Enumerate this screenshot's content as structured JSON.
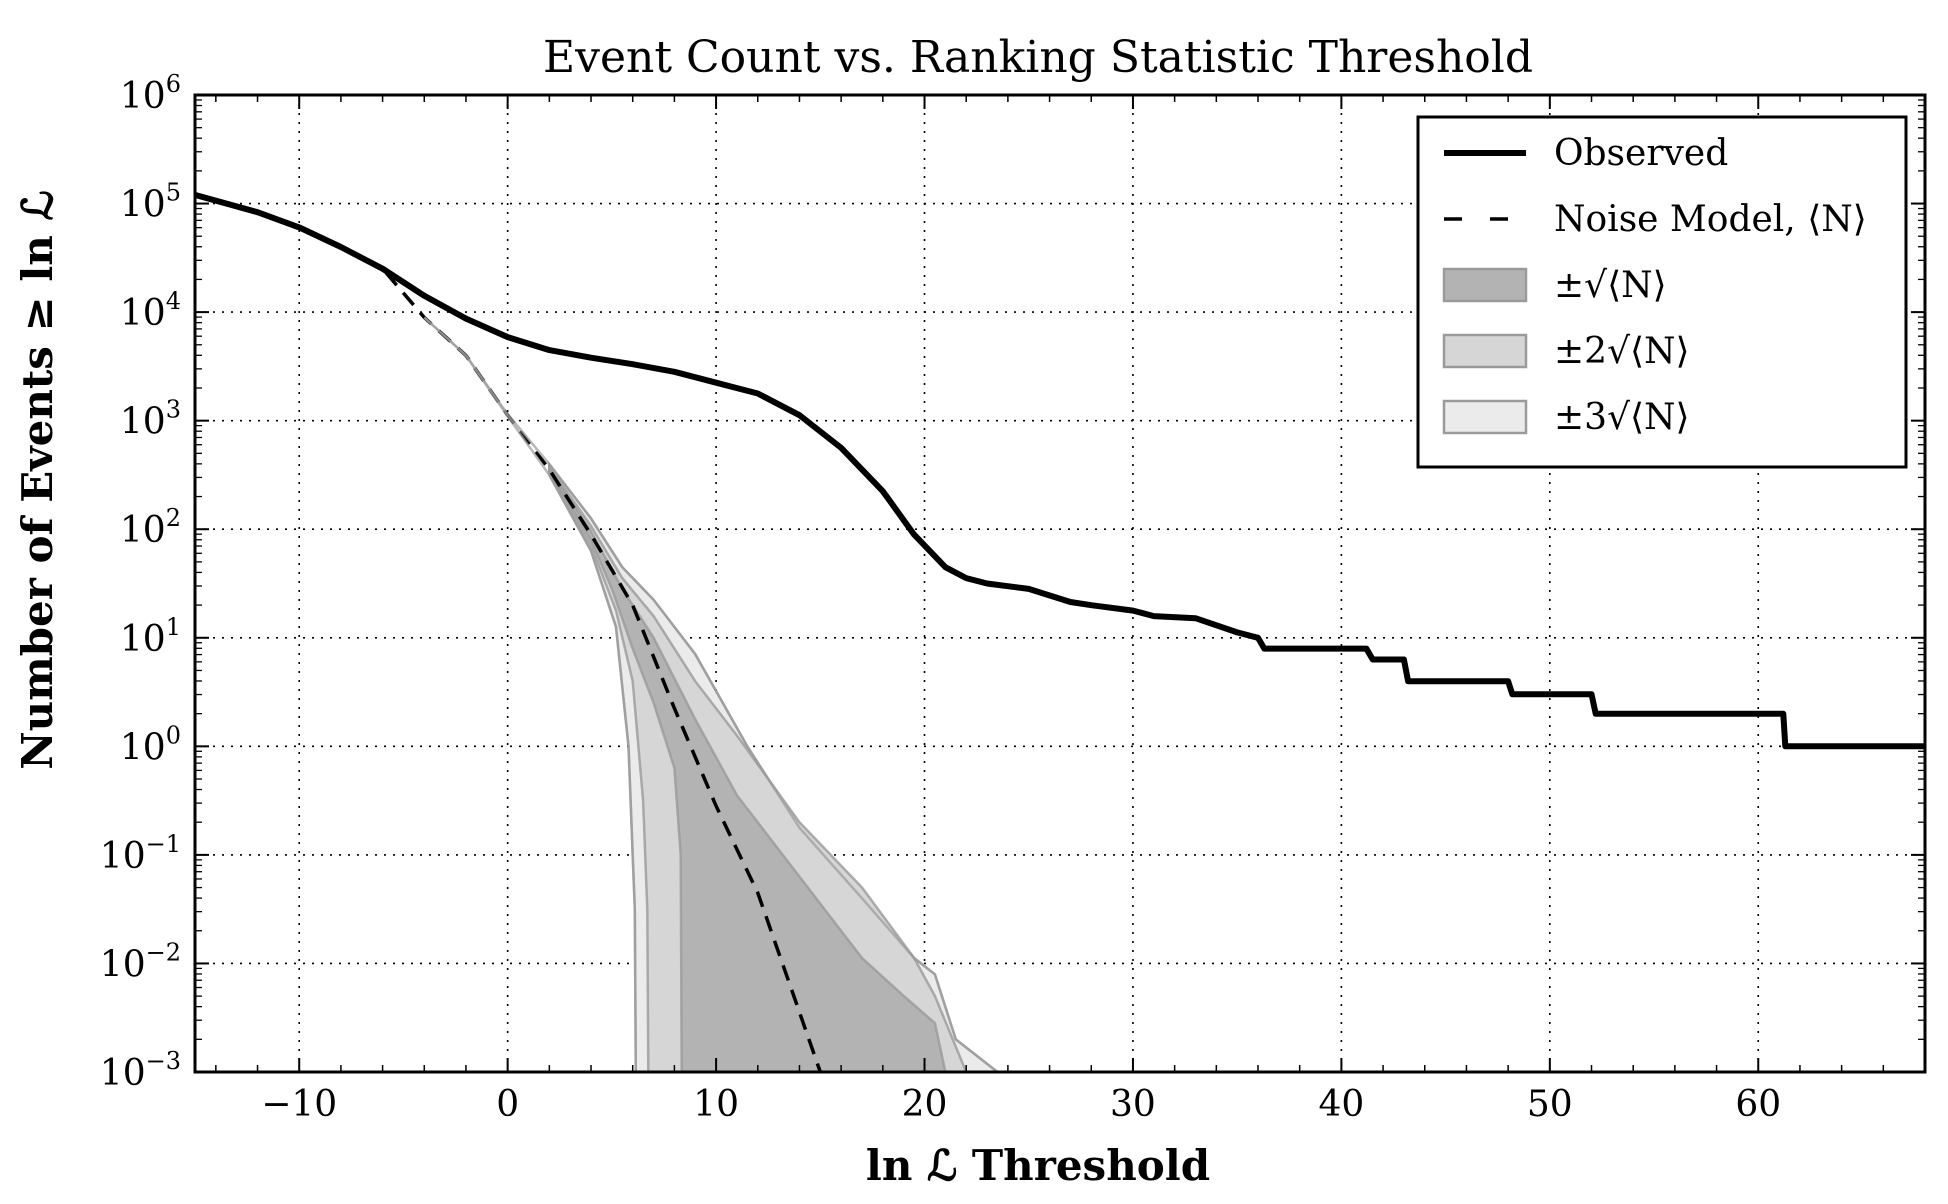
{
  "chart_data": {
    "type": "line",
    "title": "Event Count vs. Ranking Statistic Threshold",
    "xlabel": "ln ℒ Threshold",
    "ylabel": "Number of Events ≥ ln ℒ",
    "xlim": [
      -15,
      68
    ],
    "ylim_log10": [
      -3,
      6
    ],
    "yscale": "log",
    "grid": true,
    "legend_position": "top-right",
    "x_ticks": [
      {
        "value": -10,
        "label": "−10"
      },
      {
        "value": 0,
        "label": "0"
      },
      {
        "value": 10,
        "label": "10"
      },
      {
        "value": 20,
        "label": "20"
      },
      {
        "value": 30,
        "label": "30"
      },
      {
        "value": 40,
        "label": "40"
      },
      {
        "value": 50,
        "label": "50"
      },
      {
        "value": 60,
        "label": "60"
      }
    ],
    "y_ticks": [
      {
        "value": -3,
        "base": "10",
        "exp": "−3"
      },
      {
        "value": -2,
        "base": "10",
        "exp": "−2"
      },
      {
        "value": -1,
        "base": "10",
        "exp": "−1"
      },
      {
        "value": 0,
        "base": "10",
        "exp": "0"
      },
      {
        "value": 1,
        "base": "10",
        "exp": "1"
      },
      {
        "value": 2,
        "base": "10",
        "exp": "2"
      },
      {
        "value": 3,
        "base": "10",
        "exp": "3"
      },
      {
        "value": 4,
        "base": "10",
        "exp": "4"
      },
      {
        "value": 5,
        "base": "10",
        "exp": "5"
      },
      {
        "value": 6,
        "base": "10",
        "exp": "6"
      }
    ],
    "legend": {
      "observed": "Observed",
      "noise_model": "Noise Model, ⟨N⟩",
      "band1": "±√⟨N⟩",
      "band2": "±2√⟨N⟩",
      "band3": "±3√⟨N⟩"
    },
    "colors": {
      "observed": "#000000",
      "noise": "#000000",
      "band1": "#b3b3b3",
      "band2": "#d6d6d6",
      "band3": "#ebebeb",
      "band_edge": "#9a9a9a"
    },
    "series": [
      {
        "name": "Observed",
        "style": "solid",
        "log10_points": [
          [
            -15,
            5.08
          ],
          [
            -12,
            4.92
          ],
          [
            -10,
            4.78
          ],
          [
            -8,
            4.6
          ],
          [
            -6,
            4.4
          ],
          [
            -4,
            4.15
          ],
          [
            -2,
            3.94
          ],
          [
            0,
            3.77
          ],
          [
            2,
            3.65
          ],
          [
            4,
            3.58
          ],
          [
            6,
            3.52
          ],
          [
            8,
            3.45
          ],
          [
            10,
            3.35
          ],
          [
            12,
            3.25
          ],
          [
            14,
            3.05
          ],
          [
            16,
            2.75
          ],
          [
            18,
            2.35
          ],
          [
            19.5,
            1.95
          ],
          [
            21,
            1.65
          ],
          [
            22,
            1.55
          ],
          [
            23,
            1.5
          ],
          [
            25,
            1.45
          ],
          [
            27,
            1.33
          ],
          [
            28,
            1.3
          ],
          [
            30,
            1.25
          ],
          [
            31,
            1.2
          ],
          [
            33,
            1.18
          ],
          [
            35,
            1.05
          ],
          [
            36,
            1.0
          ],
          [
            36.3,
            0.9
          ],
          [
            41.2,
            0.9
          ],
          [
            41.5,
            0.8
          ],
          [
            43,
            0.8
          ],
          [
            43.2,
            0.6
          ],
          [
            48,
            0.6
          ],
          [
            48.2,
            0.48
          ],
          [
            52,
            0.48
          ],
          [
            52.2,
            0.3
          ],
          [
            61.2,
            0.3
          ],
          [
            61.3,
            0.0
          ],
          [
            68,
            0.0
          ]
        ]
      },
      {
        "name": "Noise Model, ⟨N⟩",
        "style": "dashed",
        "log10_points": [
          [
            -15,
            5.08
          ],
          [
            -12,
            4.92
          ],
          [
            -10,
            4.78
          ],
          [
            -8,
            4.6
          ],
          [
            -6,
            4.4
          ],
          [
            -4,
            3.95
          ],
          [
            -2,
            3.6
          ],
          [
            0,
            3.05
          ],
          [
            2,
            2.55
          ],
          [
            4,
            1.95
          ],
          [
            6,
            1.3
          ],
          [
            8,
            0.35
          ],
          [
            10,
            -0.55
          ],
          [
            12,
            -1.35
          ],
          [
            14,
            -2.45
          ],
          [
            15,
            -3.0
          ]
        ]
      },
      {
        "name": "±3√⟨N⟩ upper",
        "style": "band-edge",
        "log10_points": [
          [
            -4,
            3.95
          ],
          [
            -2,
            3.6
          ],
          [
            0,
            3.06
          ],
          [
            2,
            2.6
          ],
          [
            4,
            2.1
          ],
          [
            5.5,
            1.65
          ],
          [
            7,
            1.35
          ],
          [
            9,
            0.85
          ],
          [
            11.5,
            0.0
          ],
          [
            14,
            -0.75
          ],
          [
            17,
            -1.4
          ],
          [
            19.5,
            -1.95
          ],
          [
            20.5,
            -2.1
          ],
          [
            21.5,
            -2.7
          ],
          [
            23.5,
            -3.0
          ]
        ]
      },
      {
        "name": "±3√⟨N⟩ lower",
        "style": "band-edge",
        "log10_points": [
          [
            -4,
            3.95
          ],
          [
            -2,
            3.6
          ],
          [
            0,
            3.04
          ],
          [
            2,
            2.5
          ],
          [
            4,
            1.8
          ],
          [
            5.2,
            1.1
          ],
          [
            5.8,
            0.0
          ],
          [
            6.1,
            -1.5
          ],
          [
            6.15,
            -3.0
          ]
        ]
      }
    ],
    "bands": [
      {
        "name": "±√⟨N⟩",
        "upper": [
          [
            2,
            2.56
          ],
          [
            4,
            1.98
          ],
          [
            5.5,
            1.45
          ],
          [
            7,
            1.0
          ],
          [
            9,
            0.25
          ],
          [
            11,
            -0.45
          ],
          [
            13,
            -0.95
          ],
          [
            15,
            -1.45
          ],
          [
            17,
            -1.95
          ],
          [
            19,
            -2.3
          ],
          [
            20.5,
            -2.55
          ],
          [
            21,
            -3.0
          ]
        ],
        "lower": [
          [
            2,
            2.54
          ],
          [
            4,
            1.9
          ],
          [
            5,
            1.45
          ],
          [
            6,
            0.9
          ],
          [
            7,
            0.4
          ],
          [
            8,
            -0.2
          ],
          [
            8.3,
            -1.0
          ],
          [
            8.35,
            -3.0
          ]
        ]
      },
      {
        "name": "±2√⟨N⟩",
        "upper": [
          [
            2,
            2.58
          ],
          [
            4,
            2.03
          ],
          [
            5.5,
            1.55
          ],
          [
            7,
            1.2
          ],
          [
            9,
            0.6
          ],
          [
            11,
            0.1
          ],
          [
            14,
            -0.7
          ],
          [
            17,
            -1.3
          ],
          [
            19.5,
            -1.95
          ],
          [
            20.5,
            -2.3
          ],
          [
            22,
            -3.0
          ]
        ],
        "lower": [
          [
            2,
            2.52
          ],
          [
            4,
            1.85
          ],
          [
            5.2,
            1.25
          ],
          [
            6,
            0.6
          ],
          [
            6.5,
            -0.5
          ],
          [
            6.7,
            -1.5
          ],
          [
            6.75,
            -3.0
          ]
        ]
      },
      {
        "name": "±3√⟨N⟩",
        "upper": [
          [
            2,
            2.6
          ],
          [
            4,
            2.1
          ],
          [
            5.5,
            1.65
          ],
          [
            7,
            1.35
          ],
          [
            9,
            0.85
          ],
          [
            11.5,
            0.0
          ],
          [
            14,
            -0.75
          ],
          [
            17,
            -1.4
          ],
          [
            19.5,
            -1.95
          ],
          [
            20.5,
            -2.1
          ],
          [
            21.5,
            -2.7
          ],
          [
            23.5,
            -3.0
          ]
        ],
        "lower": [
          [
            2,
            2.5
          ],
          [
            4,
            1.8
          ],
          [
            5.2,
            1.1
          ],
          [
            5.8,
            0.0
          ],
          [
            6.1,
            -1.5
          ],
          [
            6.15,
            -3.0
          ]
        ]
      }
    ]
  }
}
